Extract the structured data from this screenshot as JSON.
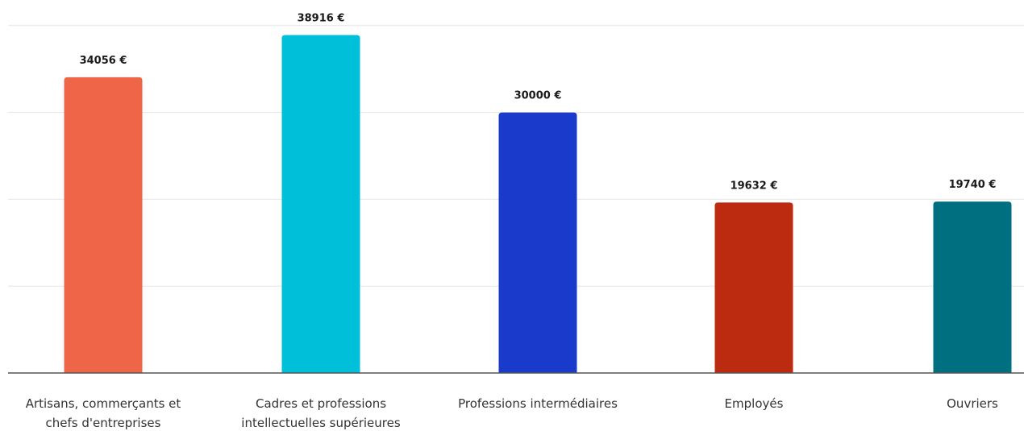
{
  "chart_data": {
    "type": "bar",
    "categories": [
      [
        "Artisans, commerçants et",
        "chefs d'entreprises"
      ],
      [
        "Cadres et professions",
        "intellectuelles supérieures"
      ],
      [
        "Professions intermédiaires"
      ],
      [
        "Employés"
      ],
      [
        "Ouvriers"
      ]
    ],
    "values": [
      34056,
      38916,
      30000,
      19632,
      19740
    ],
    "value_labels": [
      "34056 €",
      "38916 €",
      "30000 €",
      "19632 €",
      "19740 €"
    ],
    "colors": [
      "#EF6548",
      "#00BFD8",
      "#1A3ACC",
      "#BC2B10",
      "#007080"
    ],
    "ylim": [
      0,
      40000
    ],
    "gridlines": [
      10000,
      20000,
      30000,
      40000
    ],
    "grid": true,
    "legend": "none",
    "title": "",
    "xlabel": "",
    "ylabel": ""
  }
}
